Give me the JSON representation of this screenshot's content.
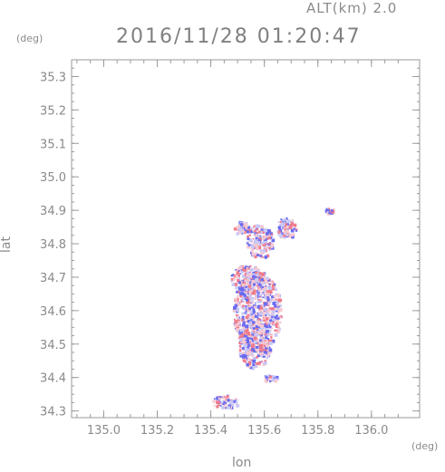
{
  "header": {
    "alt_label": "ALT(km) 2.0",
    "timestamp": "2016/11/28 01:20:47"
  },
  "chart_data": {
    "type": "heatmap",
    "title": "2016/11/28 01:20:47",
    "subtitle": "ALT(km) 2.0",
    "xlabel": "lon",
    "ylabel": "lat",
    "x_unit": "(deg)",
    "y_unit": "(deg)",
    "xlim": [
      134.88,
      136.18
    ],
    "ylim": [
      34.28,
      35.35
    ],
    "x_ticks": [
      135.0,
      135.2,
      135.4,
      135.6,
      135.8,
      136.0
    ],
    "x_tick_labels": [
      "135.0",
      "135.2",
      "135.4",
      "135.6",
      "135.8",
      "136.0"
    ],
    "y_ticks": [
      34.3,
      34.4,
      34.5,
      34.6,
      34.7,
      34.8,
      34.9,
      35.0,
      35.1,
      35.2,
      35.3
    ],
    "y_tick_labels": [
      "34.3",
      "34.4",
      "34.5",
      "34.6",
      "34.7",
      "34.8",
      "34.9",
      "35.0",
      "35.1",
      "35.2",
      "35.3"
    ],
    "grid": false,
    "colors": {
      "positive": "#f07a8a",
      "negative": "#6a6af0",
      "light_positive": "#f6c8d0",
      "light_negative": "#c8c8f6"
    },
    "patches": [
      {
        "lon": 135.57,
        "lat": 34.6,
        "rlon": 0.09,
        "rlat": 0.12
      },
      {
        "lon": 135.56,
        "lat": 34.5,
        "rlon": 0.06,
        "rlat": 0.07
      },
      {
        "lon": 135.53,
        "lat": 34.7,
        "rlon": 0.06,
        "rlat": 0.04
      },
      {
        "lon": 135.58,
        "lat": 34.81,
        "rlon": 0.05,
        "rlat": 0.05
      },
      {
        "lon": 135.51,
        "lat": 34.85,
        "rlon": 0.03,
        "rlat": 0.02
      },
      {
        "lon": 135.68,
        "lat": 34.85,
        "rlon": 0.04,
        "rlat": 0.03
      },
      {
        "lon": 135.84,
        "lat": 34.9,
        "rlon": 0.02,
        "rlat": 0.01
      },
      {
        "lon": 135.45,
        "lat": 34.33,
        "rlon": 0.05,
        "rlat": 0.02
      },
      {
        "lon": 135.62,
        "lat": 34.4,
        "rlon": 0.03,
        "rlat": 0.01
      }
    ]
  }
}
